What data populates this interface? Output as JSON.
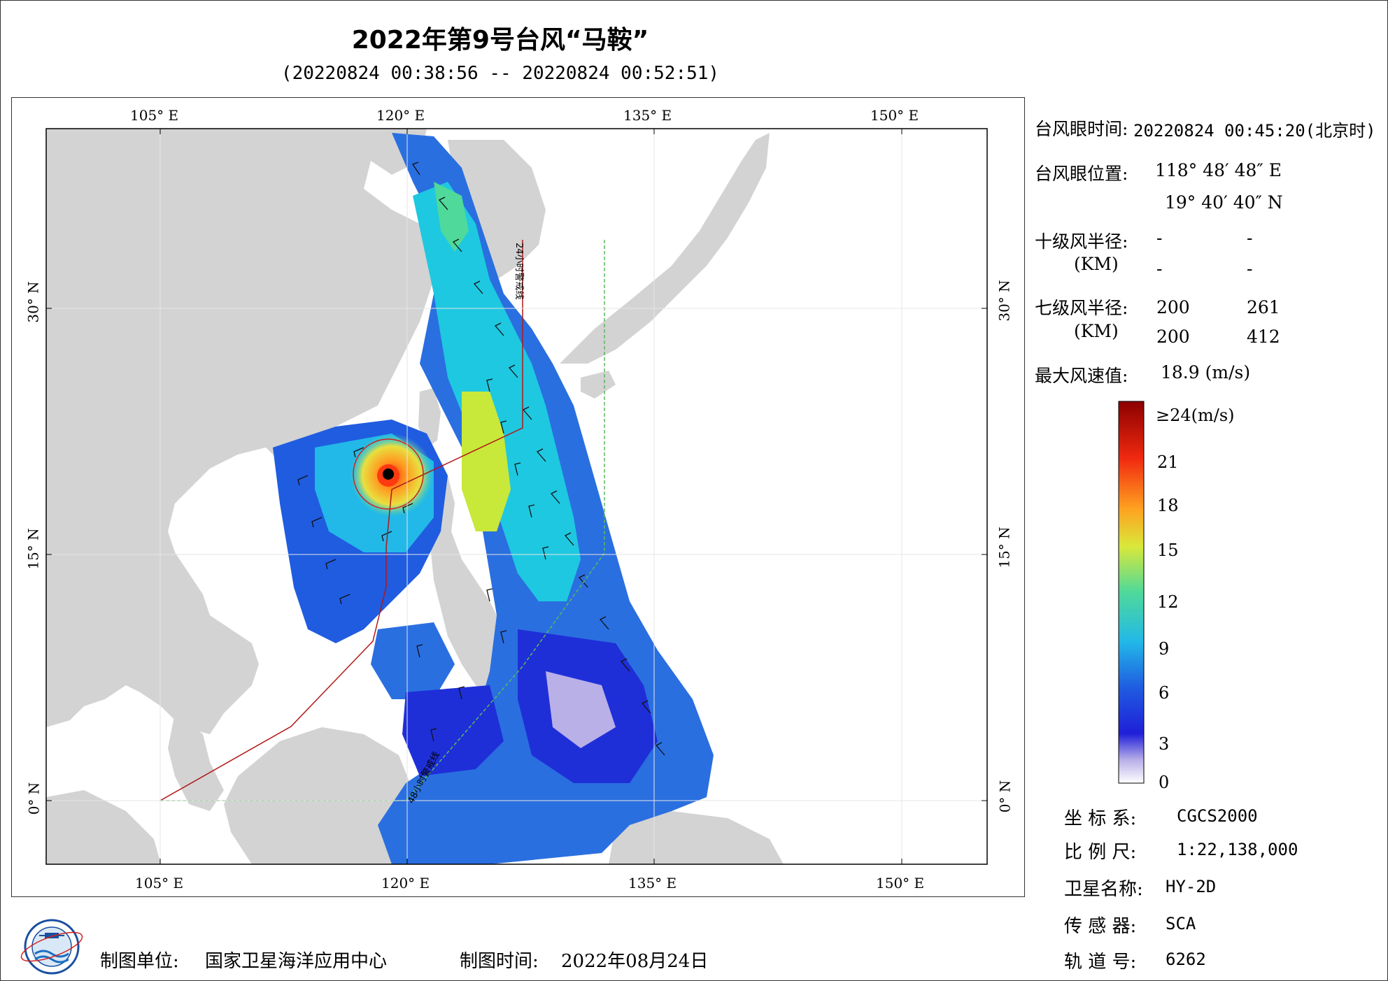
{
  "title": "2022年第9号台风“马鞍”",
  "subtitle": "(20220824 00:38:56 -- 20220824 00:52:51)",
  "map": {
    "lon_ticks": [
      "105° E",
      "120° E",
      "135° E",
      "150° E"
    ],
    "lat_ticks": [
      "30° N",
      "15° N",
      "0° N"
    ],
    "line_labels": {
      "h24": "24小时警戒线",
      "h48": "48小时警戒线"
    }
  },
  "info": {
    "eye_time_label": "台风眼时间:",
    "eye_time_value": "20220824 00:45:20(北京时)",
    "eye_pos_label": "台风眼位置:",
    "eye_lon": "118° 48′ 48″ E",
    "eye_lat": "19° 40′ 40″ N",
    "r10_label": "十级风半径:",
    "r10_unit": "(KM)",
    "r10_values": [
      "-",
      "-",
      "-",
      "-"
    ],
    "r7_label": "七级风半径:",
    "r7_unit": "(KM)",
    "r7_values": [
      "200",
      "261",
      "200",
      "412"
    ],
    "max_wind_label": "最大风速值:",
    "max_wind_value": "18.9  (m/s)"
  },
  "colorbar": {
    "labels": [
      "≥24(m/s)",
      "21",
      "18",
      "15",
      "12",
      "9",
      "6",
      "3",
      "0"
    ]
  },
  "meta": {
    "crs_label": "坐 标 系:",
    "crs_value": "CGCS2000",
    "scale_label": "比 例 尺:",
    "scale_value": "1:22,138,000",
    "sat_label": "卫星名称:",
    "sat_value": "HY-2D",
    "sensor_label": "传 感 器:",
    "sensor_value": "SCA",
    "orbit_label": "轨 道 号:",
    "orbit_value": "6262"
  },
  "footer": {
    "org_label": "制图单位:",
    "org_value": "国家卫星海洋应用中心",
    "date_label": "制图时间:",
    "date_value": "2022年08月24日"
  },
  "colors": {
    "land": "#d3d3d3",
    "warning_line_24h": "#b01818",
    "warning_line_48h": "#5cb85c"
  }
}
